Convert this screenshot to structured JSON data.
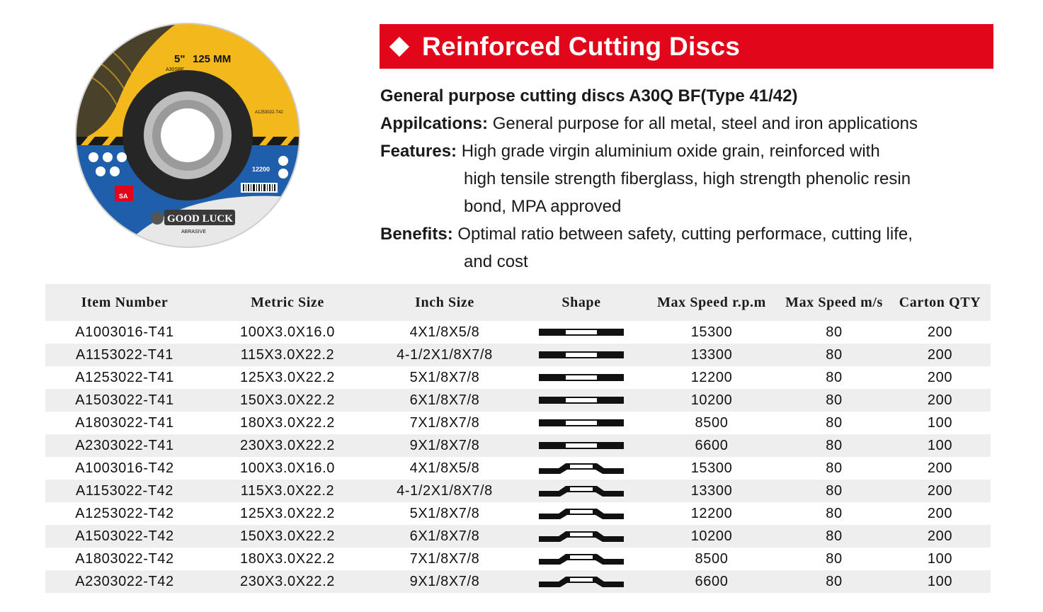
{
  "header": {
    "title": "Reinforced Cutting Discs"
  },
  "product_image": {
    "size_label": "5\"",
    "mm_label": "125 MM",
    "code_label": "A30SBF",
    "item_label": "A1253022-T42",
    "brand": "GOOD LUCK",
    "brand_sub": "ABRASIVE",
    "grade": "SA",
    "rpm": "12200"
  },
  "description": {
    "heading": "General purpose cutting discs A30Q BF(Type 41/42)",
    "applications_label": "Appilcations:",
    "applications_text": "General purpose for all metal, steel and iron applications",
    "features_label": "Features:",
    "features_line1": "High grade virgin aluminium oxide grain, reinforced with",
    "features_line2": "high tensile strength fiberglass, high strength phenolic resin",
    "features_line3": "bond, MPA approved",
    "benefits_label": "Benefits:",
    "benefits_line1": "Optimal ratio between safety, cutting performace, cutting life,",
    "benefits_line2": "and cost"
  },
  "table": {
    "headers": [
      "Item Number",
      "Metric Size",
      "Inch Size",
      "Shape",
      "Max Speed r.p.m",
      "Max Speed m/s",
      "Carton QTY"
    ],
    "rows": [
      {
        "item": "A1003016-T41",
        "metric": "100X3.0X16.0",
        "inch": "4X1/8X5/8",
        "shape": "flat",
        "rpm": "15300",
        "ms": "80",
        "qty": "200"
      },
      {
        "item": "A1153022-T41",
        "metric": "115X3.0X22.2",
        "inch": "4-1/2X1/8X7/8",
        "shape": "flat",
        "rpm": "13300",
        "ms": "80",
        "qty": "200"
      },
      {
        "item": "A1253022-T41",
        "metric": "125X3.0X22.2",
        "inch": "5X1/8X7/8",
        "shape": "flat",
        "rpm": "12200",
        "ms": "80",
        "qty": "200"
      },
      {
        "item": "A1503022-T41",
        "metric": "150X3.0X22.2",
        "inch": "6X1/8X7/8",
        "shape": "flat",
        "rpm": "10200",
        "ms": "80",
        "qty": "200"
      },
      {
        "item": "A1803022-T41",
        "metric": "180X3.0X22.2",
        "inch": "7X1/8X7/8",
        "shape": "flat",
        "rpm": "8500",
        "ms": "80",
        "qty": "100"
      },
      {
        "item": "A2303022-T41",
        "metric": "230X3.0X22.2",
        "inch": "9X1/8X7/8",
        "shape": "flat",
        "rpm": "6600",
        "ms": "80",
        "qty": "100"
      },
      {
        "item": "A1003016-T42",
        "metric": "100X3.0X16.0",
        "inch": "4X1/8X5/8",
        "shape": "depressed",
        "rpm": "15300",
        "ms": "80",
        "qty": "200"
      },
      {
        "item": "A1153022-T42",
        "metric": "115X3.0X22.2",
        "inch": "4-1/2X1/8X7/8",
        "shape": "depressed",
        "rpm": "13300",
        "ms": "80",
        "qty": "200"
      },
      {
        "item": "A1253022-T42",
        "metric": "125X3.0X22.2",
        "inch": "5X1/8X7/8",
        "shape": "depressed",
        "rpm": "12200",
        "ms": "80",
        "qty": "200"
      },
      {
        "item": "A1503022-T42",
        "metric": "150X3.0X22.2",
        "inch": "6X1/8X7/8",
        "shape": "depressed",
        "rpm": "10200",
        "ms": "80",
        "qty": "200"
      },
      {
        "item": "A1803022-T42",
        "metric": "180X3.0X22.2",
        "inch": "7X1/8X7/8",
        "shape": "depressed",
        "rpm": "8500",
        "ms": "80",
        "qty": "100"
      },
      {
        "item": "A2303022-T42",
        "metric": "230X3.0X22.2",
        "inch": "9X1/8X7/8",
        "shape": "depressed",
        "rpm": "6600",
        "ms": "80",
        "qty": "100"
      }
    ]
  },
  "colors": {
    "banner": "#e1061a",
    "disc_yellow": "#f2b81c",
    "disc_blue": "#1e5eaa",
    "row_shade": "#eeeeee"
  }
}
